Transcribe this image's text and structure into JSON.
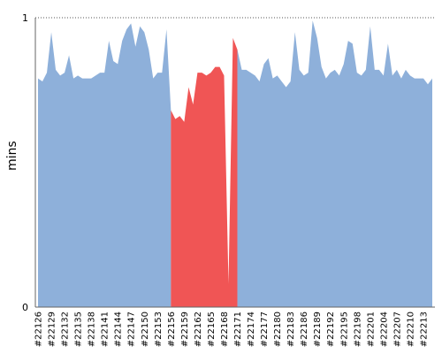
{
  "chart_data": {
    "type": "area",
    "title": "",
    "xlabel": "",
    "ylabel": "mins",
    "ylim": [
      0,
      1
    ],
    "y_ticks": [
      "0",
      "1"
    ],
    "reference_line": {
      "y": 1,
      "style": "dotted"
    },
    "grid": false,
    "legend": "none",
    "colors": {
      "normal": "#8eb0da",
      "highlight": "#f05555",
      "axis": "#666666",
      "reference": "#555555"
    },
    "x_tick_labels": [
      "#22126",
      "#22129",
      "#22132",
      "#22135",
      "#22138",
      "#22141",
      "#22144",
      "#22147",
      "#22150",
      "#22153",
      "#22156",
      "#22159",
      "#22162",
      "#22165",
      "#22168",
      "#22171",
      "#22174",
      "#22177",
      "#22180",
      "#22183",
      "#22186",
      "#22189",
      "#22192",
      "#22195",
      "#22198",
      "#22201",
      "#22204",
      "#22207",
      "#22210",
      "#22213"
    ],
    "x_first": 22126,
    "x_last": 22215,
    "values": [
      0.79,
      0.78,
      0.81,
      0.95,
      0.82,
      0.8,
      0.81,
      0.87,
      0.79,
      0.8,
      0.79,
      0.79,
      0.79,
      0.8,
      0.81,
      0.81,
      0.92,
      0.85,
      0.84,
      0.92,
      0.96,
      0.98,
      0.9,
      0.97,
      0.95,
      0.89,
      0.79,
      0.81,
      0.81,
      0.96,
      0.68,
      0.65,
      0.66,
      0.64,
      0.76,
      0.7,
      0.81,
      0.81,
      0.8,
      0.81,
      0.83,
      0.83,
      0.8,
      0.08,
      0.93,
      0.89,
      0.82,
      0.82,
      0.81,
      0.8,
      0.78,
      0.84,
      0.86,
      0.79,
      0.8,
      0.78,
      0.76,
      0.78,
      0.95,
      0.82,
      0.8,
      0.81,
      0.99,
      0.93,
      0.83,
      0.79,
      0.81,
      0.82,
      0.8,
      0.84,
      0.92,
      0.91,
      0.81,
      0.8,
      0.82,
      0.97,
      0.82,
      0.82,
      0.8,
      0.91,
      0.8,
      0.82,
      0.79,
      0.82,
      0.8,
      0.79,
      0.79,
      0.79,
      0.77,
      0.79
    ],
    "highlight_range": [
      22156,
      22171
    ]
  }
}
